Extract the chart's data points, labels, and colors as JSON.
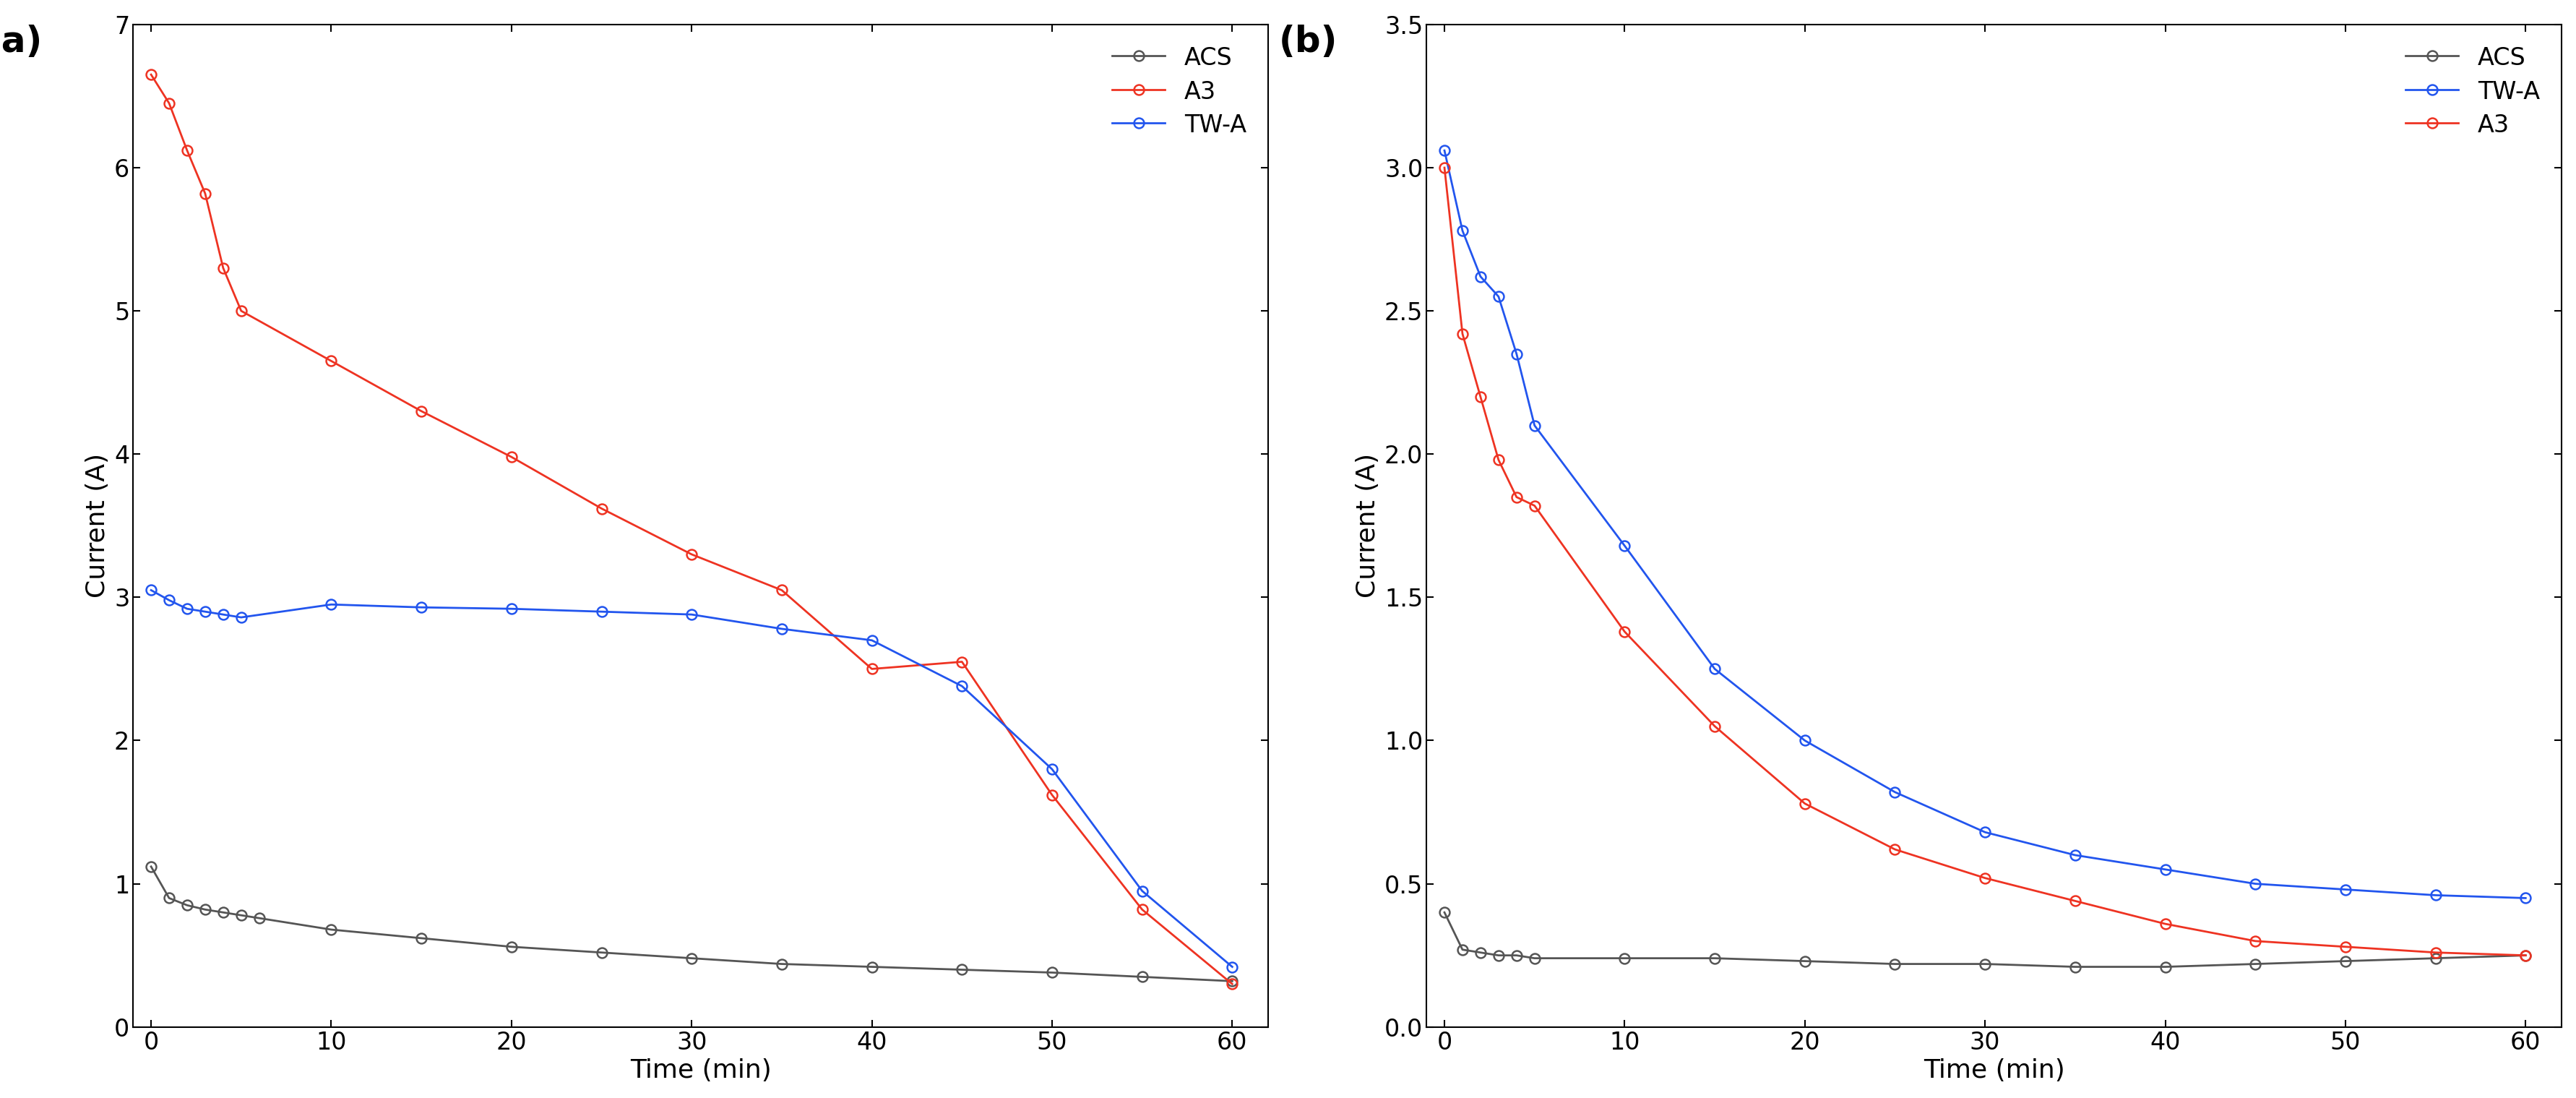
{
  "panel_a": {
    "label": "(a)",
    "xlabel": "Time (min)",
    "ylabel": "Current (A)",
    "ylim": [
      0,
      7
    ],
    "xlim": [
      -1,
      62
    ],
    "yticks": [
      0,
      1,
      2,
      3,
      4,
      5,
      6,
      7
    ],
    "xticks": [
      0,
      10,
      20,
      30,
      40,
      50,
      60
    ],
    "legend_order": [
      "ACS",
      "A3",
      "TW-A"
    ],
    "series": {
      "ACS": {
        "color": "#555555",
        "x": [
          0,
          1,
          2,
          3,
          4,
          5,
          6,
          10,
          15,
          20,
          25,
          30,
          35,
          40,
          45,
          50,
          55,
          60
        ],
        "y": [
          1.12,
          0.9,
          0.85,
          0.82,
          0.8,
          0.78,
          0.76,
          0.68,
          0.62,
          0.56,
          0.52,
          0.48,
          0.44,
          0.42,
          0.4,
          0.38,
          0.35,
          0.32
        ]
      },
      "A3": {
        "color": "#ee3322",
        "x": [
          0,
          1,
          2,
          3,
          4,
          5,
          10,
          15,
          20,
          25,
          30,
          35,
          40,
          45,
          50,
          55,
          60
        ],
        "y": [
          6.65,
          6.45,
          6.12,
          5.82,
          5.3,
          5.0,
          4.65,
          4.3,
          3.98,
          3.62,
          3.3,
          3.05,
          2.5,
          2.55,
          1.62,
          0.82,
          0.3
        ]
      },
      "TW-A": {
        "color": "#2255ee",
        "x": [
          0,
          1,
          2,
          3,
          4,
          5,
          10,
          15,
          20,
          25,
          30,
          35,
          40,
          45,
          50,
          55,
          60
        ],
        "y": [
          3.05,
          2.98,
          2.92,
          2.9,
          2.88,
          2.86,
          2.95,
          2.93,
          2.92,
          2.9,
          2.88,
          2.78,
          2.7,
          2.38,
          1.8,
          0.95,
          0.42
        ]
      }
    }
  },
  "panel_b": {
    "label": "(b)",
    "xlabel": "Time (min)",
    "ylabel": "Current (A)",
    "ylim": [
      0.0,
      3.5
    ],
    "xlim": [
      -1,
      62
    ],
    "yticks": [
      0.0,
      0.5,
      1.0,
      1.5,
      2.0,
      2.5,
      3.0,
      3.5
    ],
    "xticks": [
      0,
      10,
      20,
      30,
      40,
      50,
      60
    ],
    "legend_order": [
      "ACS",
      "TW-A",
      "A3"
    ],
    "series": {
      "ACS": {
        "color": "#555555",
        "x": [
          0,
          1,
          2,
          3,
          4,
          5,
          10,
          15,
          20,
          25,
          30,
          35,
          40,
          45,
          50,
          55,
          60
        ],
        "y": [
          0.4,
          0.27,
          0.26,
          0.25,
          0.25,
          0.24,
          0.24,
          0.24,
          0.23,
          0.22,
          0.22,
          0.21,
          0.21,
          0.22,
          0.23,
          0.24,
          0.25
        ]
      },
      "TW-A": {
        "color": "#2255ee",
        "x": [
          0,
          1,
          2,
          3,
          4,
          5,
          10,
          15,
          20,
          25,
          30,
          35,
          40,
          45,
          50,
          55,
          60
        ],
        "y": [
          3.06,
          2.78,
          2.62,
          2.55,
          2.35,
          2.1,
          1.68,
          1.25,
          1.0,
          0.82,
          0.68,
          0.6,
          0.55,
          0.5,
          0.48,
          0.46,
          0.45
        ]
      },
      "A3": {
        "color": "#ee3322",
        "x": [
          0,
          1,
          2,
          3,
          4,
          5,
          10,
          15,
          20,
          25,
          30,
          35,
          40,
          45,
          50,
          55,
          60
        ],
        "y": [
          3.0,
          2.42,
          2.2,
          1.98,
          1.85,
          1.82,
          1.38,
          1.05,
          0.78,
          0.62,
          0.52,
          0.44,
          0.36,
          0.3,
          0.28,
          0.26,
          0.25
        ]
      }
    }
  },
  "background_color": "#ffffff",
  "plot_bg_color": "#ffffff",
  "marker": "o",
  "markersize": 10,
  "markeredgewidth": 1.8,
  "linewidth": 2.0,
  "label_fontsize": 26,
  "tick_fontsize": 24,
  "legend_fontsize": 24,
  "panel_label_fontsize": 36
}
